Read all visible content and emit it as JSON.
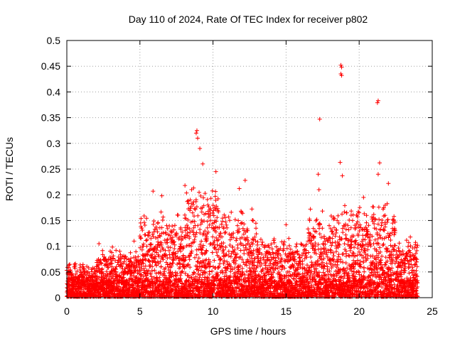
{
  "chart_data": {
    "type": "scatter",
    "title": "Day 110 of 2024, Rate Of TEC Index for receiver p802",
    "xlabel": "GPS time / hours",
    "ylabel": "ROTI / TECUs",
    "xlim": [
      0,
      25
    ],
    "ylim": [
      0,
      0.5
    ],
    "xticks": [
      0,
      5,
      10,
      15,
      20,
      25
    ],
    "yticks": [
      0,
      0.05,
      0.1,
      0.15,
      0.2,
      0.25,
      0.3,
      0.35,
      0.4,
      0.45,
      0.5
    ],
    "xtick_labels": [
      "0",
      "5",
      "10",
      "15",
      "20",
      "25"
    ],
    "ytick_labels": [
      "0",
      "0.05",
      "0.1",
      "0.15",
      "0.2",
      "0.25",
      "0.3",
      "0.35",
      "0.4",
      "0.45",
      "0.5"
    ],
    "grid": true,
    "marker": "+",
    "color": "#ff0000",
    "series": [
      {
        "name": "ROTI",
        "x_range": [
          0,
          24
        ],
        "notable_points": [
          {
            "x": 8.9,
            "y": 0.325
          },
          {
            "x": 8.85,
            "y": 0.32
          },
          {
            "x": 8.95,
            "y": 0.31
          },
          {
            "x": 9.1,
            "y": 0.29
          },
          {
            "x": 9.3,
            "y": 0.26
          },
          {
            "x": 10.2,
            "y": 0.245
          },
          {
            "x": 12.2,
            "y": 0.228
          },
          {
            "x": 11.8,
            "y": 0.212
          },
          {
            "x": 17.3,
            "y": 0.347
          },
          {
            "x": 17.2,
            "y": 0.24
          },
          {
            "x": 17.25,
            "y": 0.21
          },
          {
            "x": 18.75,
            "y": 0.452
          },
          {
            "x": 18.8,
            "y": 0.448
          },
          {
            "x": 18.75,
            "y": 0.435
          },
          {
            "x": 18.8,
            "y": 0.432
          },
          {
            "x": 18.7,
            "y": 0.263
          },
          {
            "x": 18.85,
            "y": 0.237
          },
          {
            "x": 21.3,
            "y": 0.383
          },
          {
            "x": 21.25,
            "y": 0.379
          },
          {
            "x": 21.4,
            "y": 0.262
          },
          {
            "x": 21.3,
            "y": 0.24
          },
          {
            "x": 22.0,
            "y": 0.222
          },
          {
            "x": 5.9,
            "y": 0.207
          },
          {
            "x": 6.5,
            "y": 0.198
          },
          {
            "x": 20.3,
            "y": 0.195
          },
          {
            "x": 2.2,
            "y": 0.105
          },
          {
            "x": 4.6,
            "y": 0.11
          },
          {
            "x": 15.0,
            "y": 0.142
          },
          {
            "x": 23.5,
            "y": 0.118
          }
        ],
        "envelope": [
          {
            "x_from": 0,
            "x_to": 2,
            "typical_max": 0.07
          },
          {
            "x_from": 2,
            "x_to": 5,
            "typical_max": 0.1
          },
          {
            "x_from": 5,
            "x_to": 8,
            "typical_max": 0.17
          },
          {
            "x_from": 8,
            "x_to": 10.5,
            "typical_max": 0.23
          },
          {
            "x_from": 10.5,
            "x_to": 13,
            "typical_max": 0.18
          },
          {
            "x_from": 13,
            "x_to": 16.5,
            "typical_max": 0.12
          },
          {
            "x_from": 16.5,
            "x_to": 19.5,
            "typical_max": 0.18
          },
          {
            "x_from": 19.5,
            "x_to": 22.5,
            "typical_max": 0.19
          },
          {
            "x_from": 22.5,
            "x_to": 24,
            "typical_max": 0.12
          }
        ]
      }
    ]
  }
}
